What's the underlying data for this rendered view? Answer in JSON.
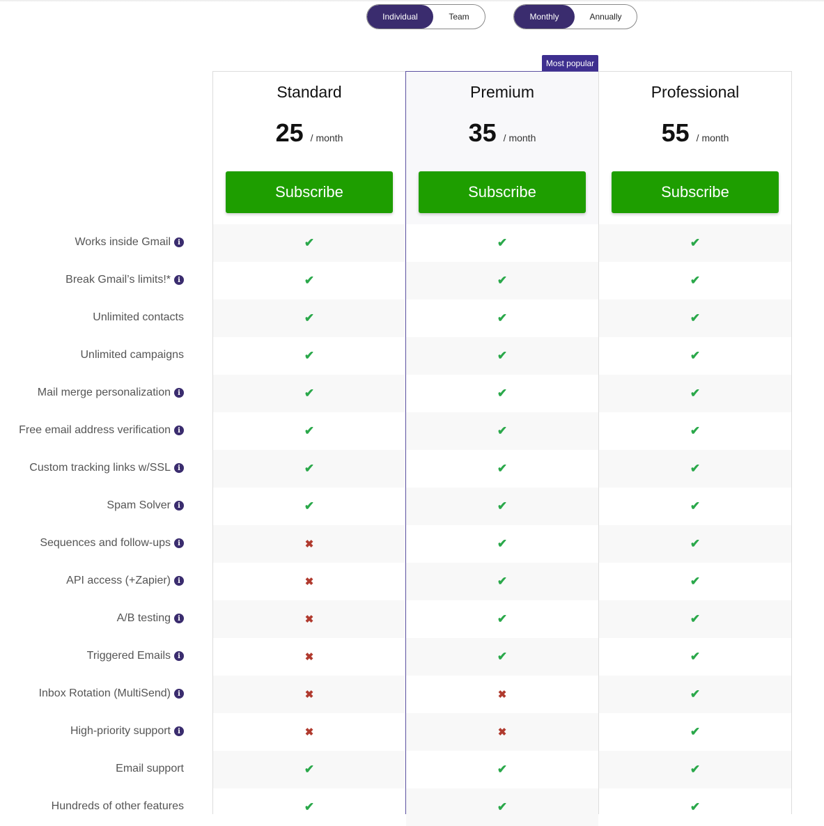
{
  "toggles": {
    "audience": {
      "options": [
        "Individual",
        "Team"
      ],
      "selected": "Individual"
    },
    "billing": {
      "options": [
        "Monthly",
        "Annually"
      ],
      "selected": "Monthly"
    }
  },
  "badge": "Most popular",
  "plans": [
    {
      "name": "Standard",
      "price": "25",
      "period": "/ month",
      "cta": "Subscribe"
    },
    {
      "name": "Premium",
      "price": "35",
      "period": "/ month",
      "cta": "Subscribe"
    },
    {
      "name": "Professional",
      "price": "55",
      "period": "/ month",
      "cta": "Subscribe"
    }
  ],
  "colors": {
    "accent": "#3a2c6e",
    "cta": "#1e9e00",
    "check": "#2aa84a",
    "cross": "#b03a2e"
  },
  "features": [
    {
      "label": "Works inside Gmail",
      "info": true,
      "values": [
        true,
        true,
        true
      ]
    },
    {
      "label": "Break Gmail’s limits!*",
      "info": true,
      "values": [
        true,
        true,
        true
      ]
    },
    {
      "label": "Unlimited contacts",
      "info": false,
      "values": [
        true,
        true,
        true
      ]
    },
    {
      "label": "Unlimited campaigns",
      "info": false,
      "values": [
        true,
        true,
        true
      ]
    },
    {
      "label": "Mail merge personalization",
      "info": true,
      "values": [
        true,
        true,
        true
      ]
    },
    {
      "label": "Free email address verification",
      "info": true,
      "values": [
        true,
        true,
        true
      ]
    },
    {
      "label": "Custom tracking links w/SSL",
      "info": true,
      "values": [
        true,
        true,
        true
      ]
    },
    {
      "label": "Spam Solver",
      "info": true,
      "values": [
        true,
        true,
        true
      ]
    },
    {
      "label": "Sequences and follow-ups",
      "info": true,
      "values": [
        false,
        true,
        true
      ]
    },
    {
      "label": "API access (+Zapier)",
      "info": true,
      "values": [
        false,
        true,
        true
      ]
    },
    {
      "label": "A/B testing",
      "info": true,
      "values": [
        false,
        true,
        true
      ]
    },
    {
      "label": "Triggered Emails",
      "info": true,
      "values": [
        false,
        true,
        true
      ]
    },
    {
      "label": "Inbox Rotation (MultiSend)",
      "info": true,
      "values": [
        false,
        false,
        true
      ]
    },
    {
      "label": "High-priority support",
      "info": true,
      "values": [
        false,
        false,
        true
      ]
    },
    {
      "label": "Email support",
      "info": false,
      "values": [
        true,
        true,
        true
      ]
    },
    {
      "label": "Hundreds of other features",
      "info": false,
      "values": [
        true,
        true,
        true
      ]
    }
  ]
}
